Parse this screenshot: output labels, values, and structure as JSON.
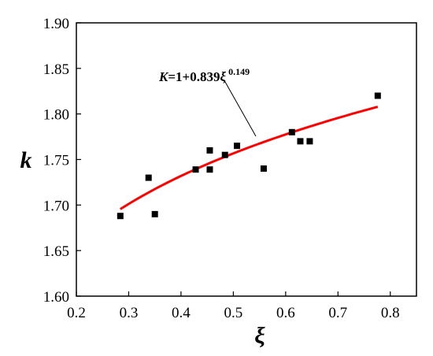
{
  "chart_data": {
    "type": "scatter",
    "xlabel": "ξ",
    "ylabel": "k",
    "xlim": [
      0.2,
      0.85
    ],
    "ylim": [
      1.6,
      1.9
    ],
    "x_ticks": [
      "0.2",
      "0.3",
      "0.4",
      "0.5",
      "0.6",
      "0.7",
      "0.8"
    ],
    "y_ticks": [
      "1.60",
      "1.65",
      "1.70",
      "1.75",
      "1.80",
      "1.85",
      "1.90"
    ],
    "grid": false,
    "points": [
      {
        "x": 0.284,
        "y": 1.688
      },
      {
        "x": 0.338,
        "y": 1.73
      },
      {
        "x": 0.35,
        "y": 1.69
      },
      {
        "x": 0.428,
        "y": 1.739
      },
      {
        "x": 0.455,
        "y": 1.76
      },
      {
        "x": 0.455,
        "y": 1.739
      },
      {
        "x": 0.484,
        "y": 1.755
      },
      {
        "x": 0.507,
        "y": 1.765
      },
      {
        "x": 0.558,
        "y": 1.74
      },
      {
        "x": 0.612,
        "y": 1.78
      },
      {
        "x": 0.628,
        "y": 1.77
      },
      {
        "x": 0.646,
        "y": 1.77
      },
      {
        "x": 0.776,
        "y": 1.82
      }
    ],
    "fit": {
      "x_range": [
        0.284,
        0.776
      ],
      "coefficient": 0.839,
      "exponent": 0.149,
      "color": "#ff0000"
    },
    "annotation": {
      "lhs": "K",
      "eq_text": "=1+0.839",
      "var": "ξ",
      "exponent_text": "0.149"
    }
  }
}
